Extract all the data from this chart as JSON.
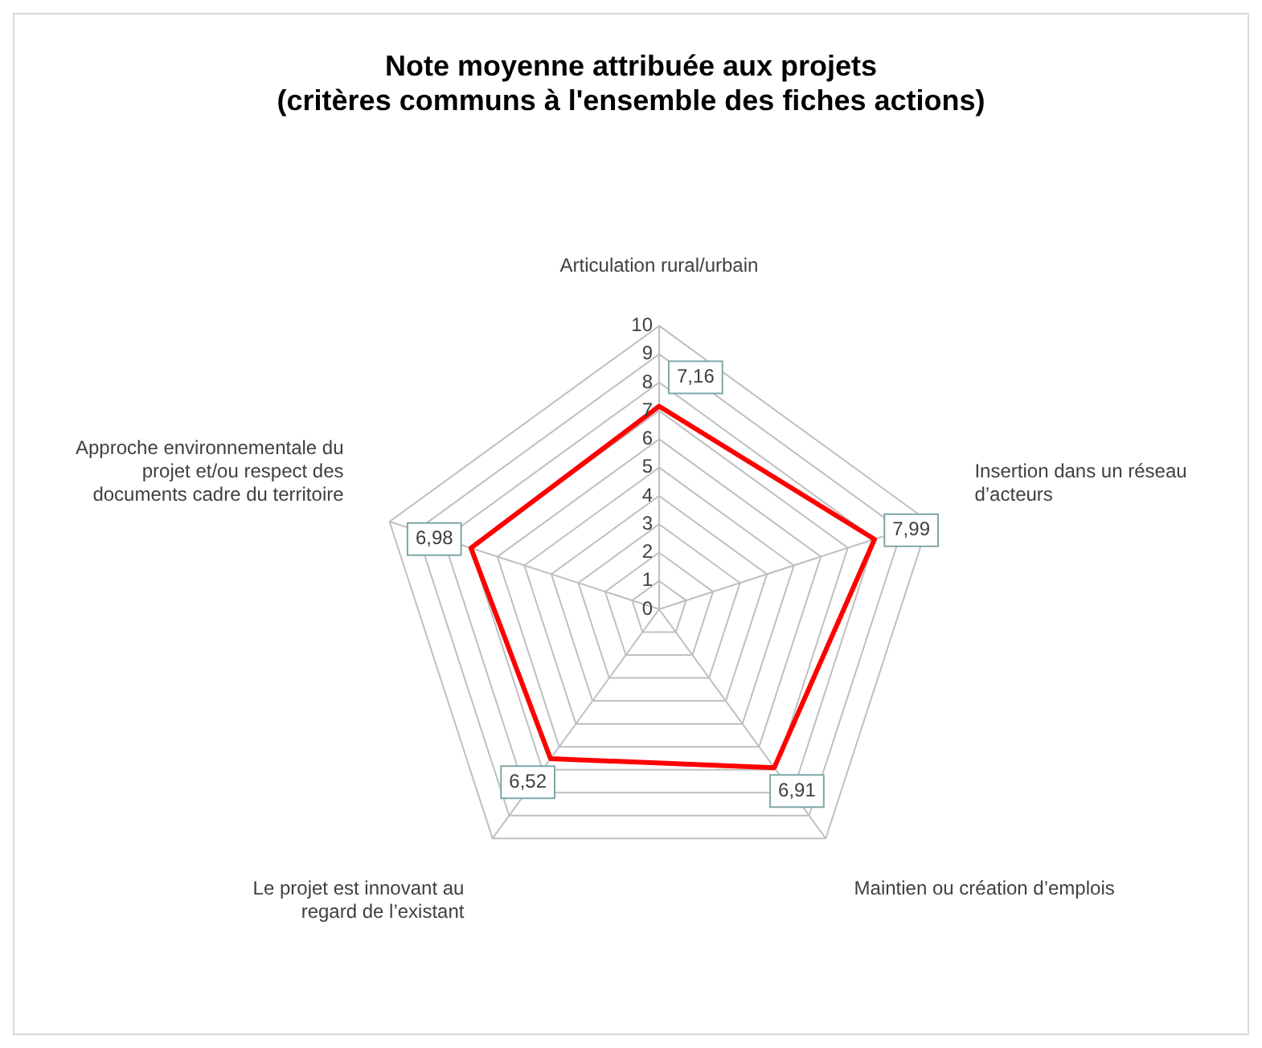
{
  "chart_data": {
    "type": "radar",
    "title": "Note moyenne attribuée aux projets",
    "subtitle": "(critères communs à l'ensemble des fiches actions)",
    "categories": [
      "Articulation rural/urbain",
      "Insertion dans un réseau d’acteurs",
      "Maintien ou création d’emplois",
      "Le projet est innovant au regard de l’existant",
      "Approche environnementale du projet et/ou respect des documents cadre du territoire"
    ],
    "series": [
      {
        "color": "#ff0000",
        "values": [
          7.16,
          7.99,
          6.91,
          6.52,
          6.98
        ],
        "value_labels": [
          "7,16",
          "7,99",
          "6,91",
          "6,52",
          "6,98"
        ]
      }
    ],
    "ylim": [
      0,
      10
    ],
    "yticks": [
      0,
      1,
      2,
      3,
      4,
      5,
      6,
      7,
      8,
      9,
      10
    ],
    "grid": true,
    "legend": false,
    "marker": "none",
    "line_style": "solid"
  }
}
